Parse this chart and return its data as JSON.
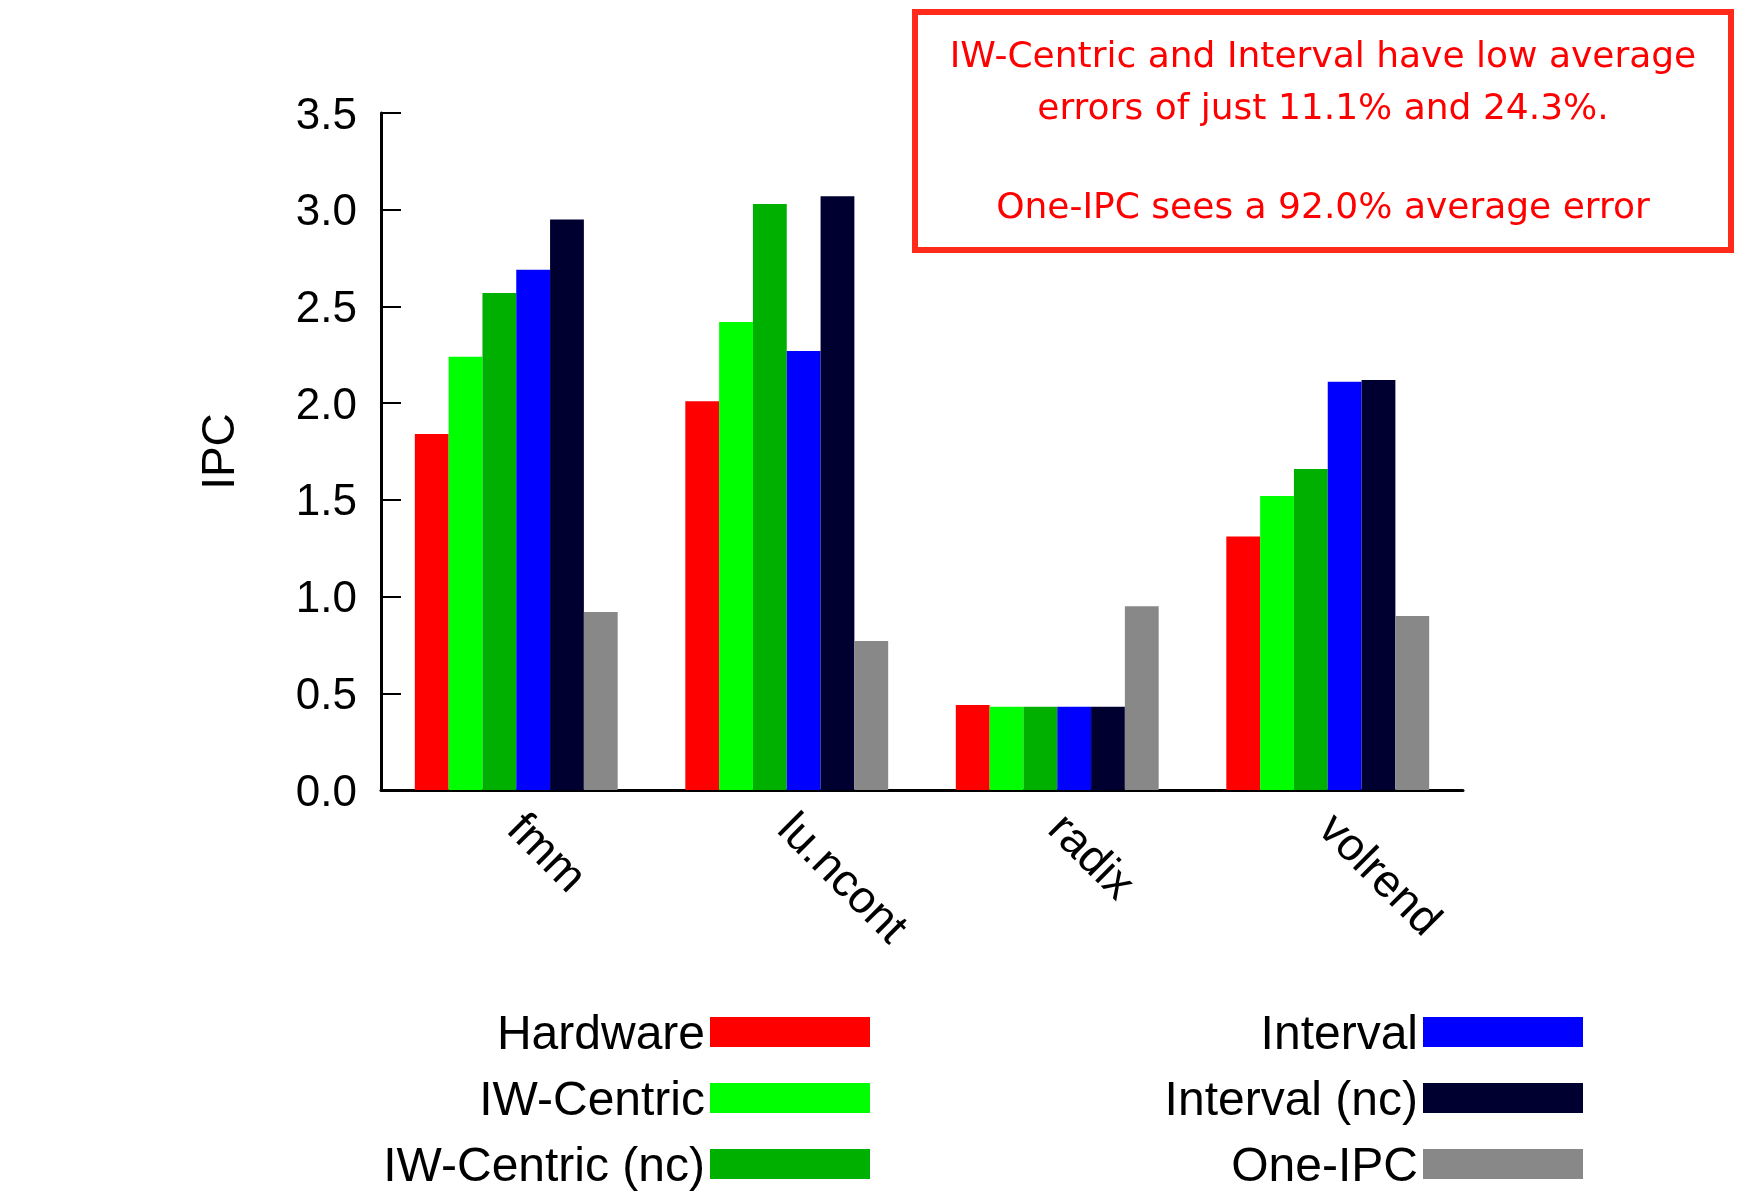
{
  "chart_data": {
    "type": "bar",
    "ylabel": "IPC",
    "categories": [
      "fmm",
      "lu.ncont",
      "radix",
      "volrend"
    ],
    "series": [
      {
        "name": "Hardware",
        "color": "#ff0000",
        "values": [
          1.84,
          2.01,
          0.44,
          1.31
        ]
      },
      {
        "name": "IW-Centric",
        "color": "#00ff00",
        "values": [
          2.24,
          2.42,
          0.43,
          1.52
        ]
      },
      {
        "name": "IW-Centric (nc)",
        "color": "#00b000",
        "values": [
          2.57,
          3.03,
          0.43,
          1.66
        ]
      },
      {
        "name": "Interval",
        "color": "#0000ff",
        "values": [
          2.69,
          2.27,
          0.43,
          2.11
        ]
      },
      {
        "name": "Interval (nc)",
        "color": "#000030",
        "values": [
          2.95,
          3.07,
          0.43,
          2.12
        ]
      },
      {
        "name": "One-IPC",
        "color": "#888888",
        "values": [
          0.92,
          0.77,
          0.95,
          0.9
        ]
      }
    ],
    "ylim": [
      0,
      3.5
    ],
    "yticks": [
      {
        "value": 0,
        "label": "0.0"
      },
      {
        "value": 0.5,
        "label": "0.5"
      },
      {
        "value": 1,
        "label": "1.0"
      },
      {
        "value": 1.5,
        "label": "1.5"
      },
      {
        "value": 2,
        "label": "2.0"
      },
      {
        "value": 2.5,
        "label": "2.5"
      },
      {
        "value": 3,
        "label": "3.0"
      },
      {
        "value": 3.5,
        "label": "3.5"
      }
    ],
    "grid": false,
    "legend": "bottom",
    "annotations": [
      "IW-Centric and Interval have low average errors of just 11.1% and 24.3%.",
      "One-IPC sees a 92.0% average error"
    ]
  }
}
